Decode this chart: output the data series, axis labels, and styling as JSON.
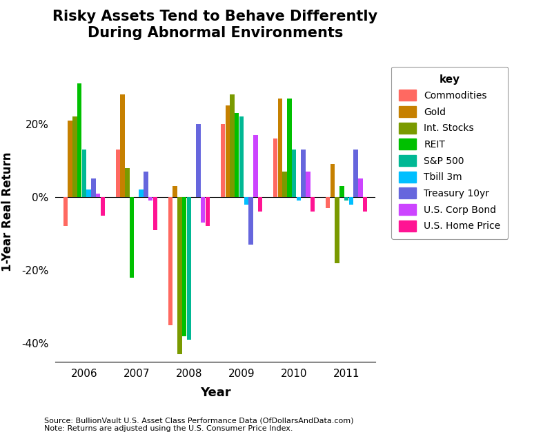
{
  "title": "Risky Assets Tend to Behave Differently\nDuring Abnormal Environments",
  "xlabel": "Year",
  "ylabel": "1-Year Real Return",
  "source_note": "Source: BullionVault U.S. Asset Class Performance Data (OfDollarsAndData.com)\nNote: Returns are adjusted using the U.S. Consumer Price Index.",
  "years": [
    2006,
    2007,
    2008,
    2009,
    2010,
    2011
  ],
  "series": {
    "Commodities": [
      -8,
      13,
      -35,
      20,
      16,
      -3
    ],
    "Gold": [
      21,
      28,
      3,
      25,
      27,
      9
    ],
    "Int. Stocks": [
      22,
      8,
      -43,
      28,
      7,
      -18
    ],
    "REIT": [
      31,
      -22,
      -38,
      23,
      27,
      3
    ],
    "S&P 500": [
      13,
      0,
      -39,
      22,
      13,
      -1
    ],
    "Tbill 3m": [
      2,
      2,
      0,
      -2,
      -1,
      -2
    ],
    "Treasury 10yr": [
      5,
      7,
      20,
      -13,
      13,
      13
    ],
    "U.S. Corp Bond": [
      1,
      -1,
      -7,
      17,
      7,
      5
    ],
    "U.S. Home Price": [
      -5,
      -9,
      -8,
      -4,
      -4,
      -4
    ]
  },
  "colors": {
    "Commodities": "#FF6961",
    "Gold": "#C68000",
    "Int. Stocks": "#7A9A00",
    "REIT": "#00C000",
    "S&P 500": "#00B894",
    "Tbill 3m": "#00BFFF",
    "Treasury 10yr": "#6666DD",
    "U.S. Corp Bond": "#CC44FF",
    "U.S. Home Price": "#FF1493"
  },
  "ylim": [
    -45,
    37
  ],
  "yticks": [
    -40,
    -20,
    0,
    20
  ],
  "background_color": "#FFFFFF",
  "figsize": [
    8.0,
    6.4
  ],
  "dpi": 100
}
